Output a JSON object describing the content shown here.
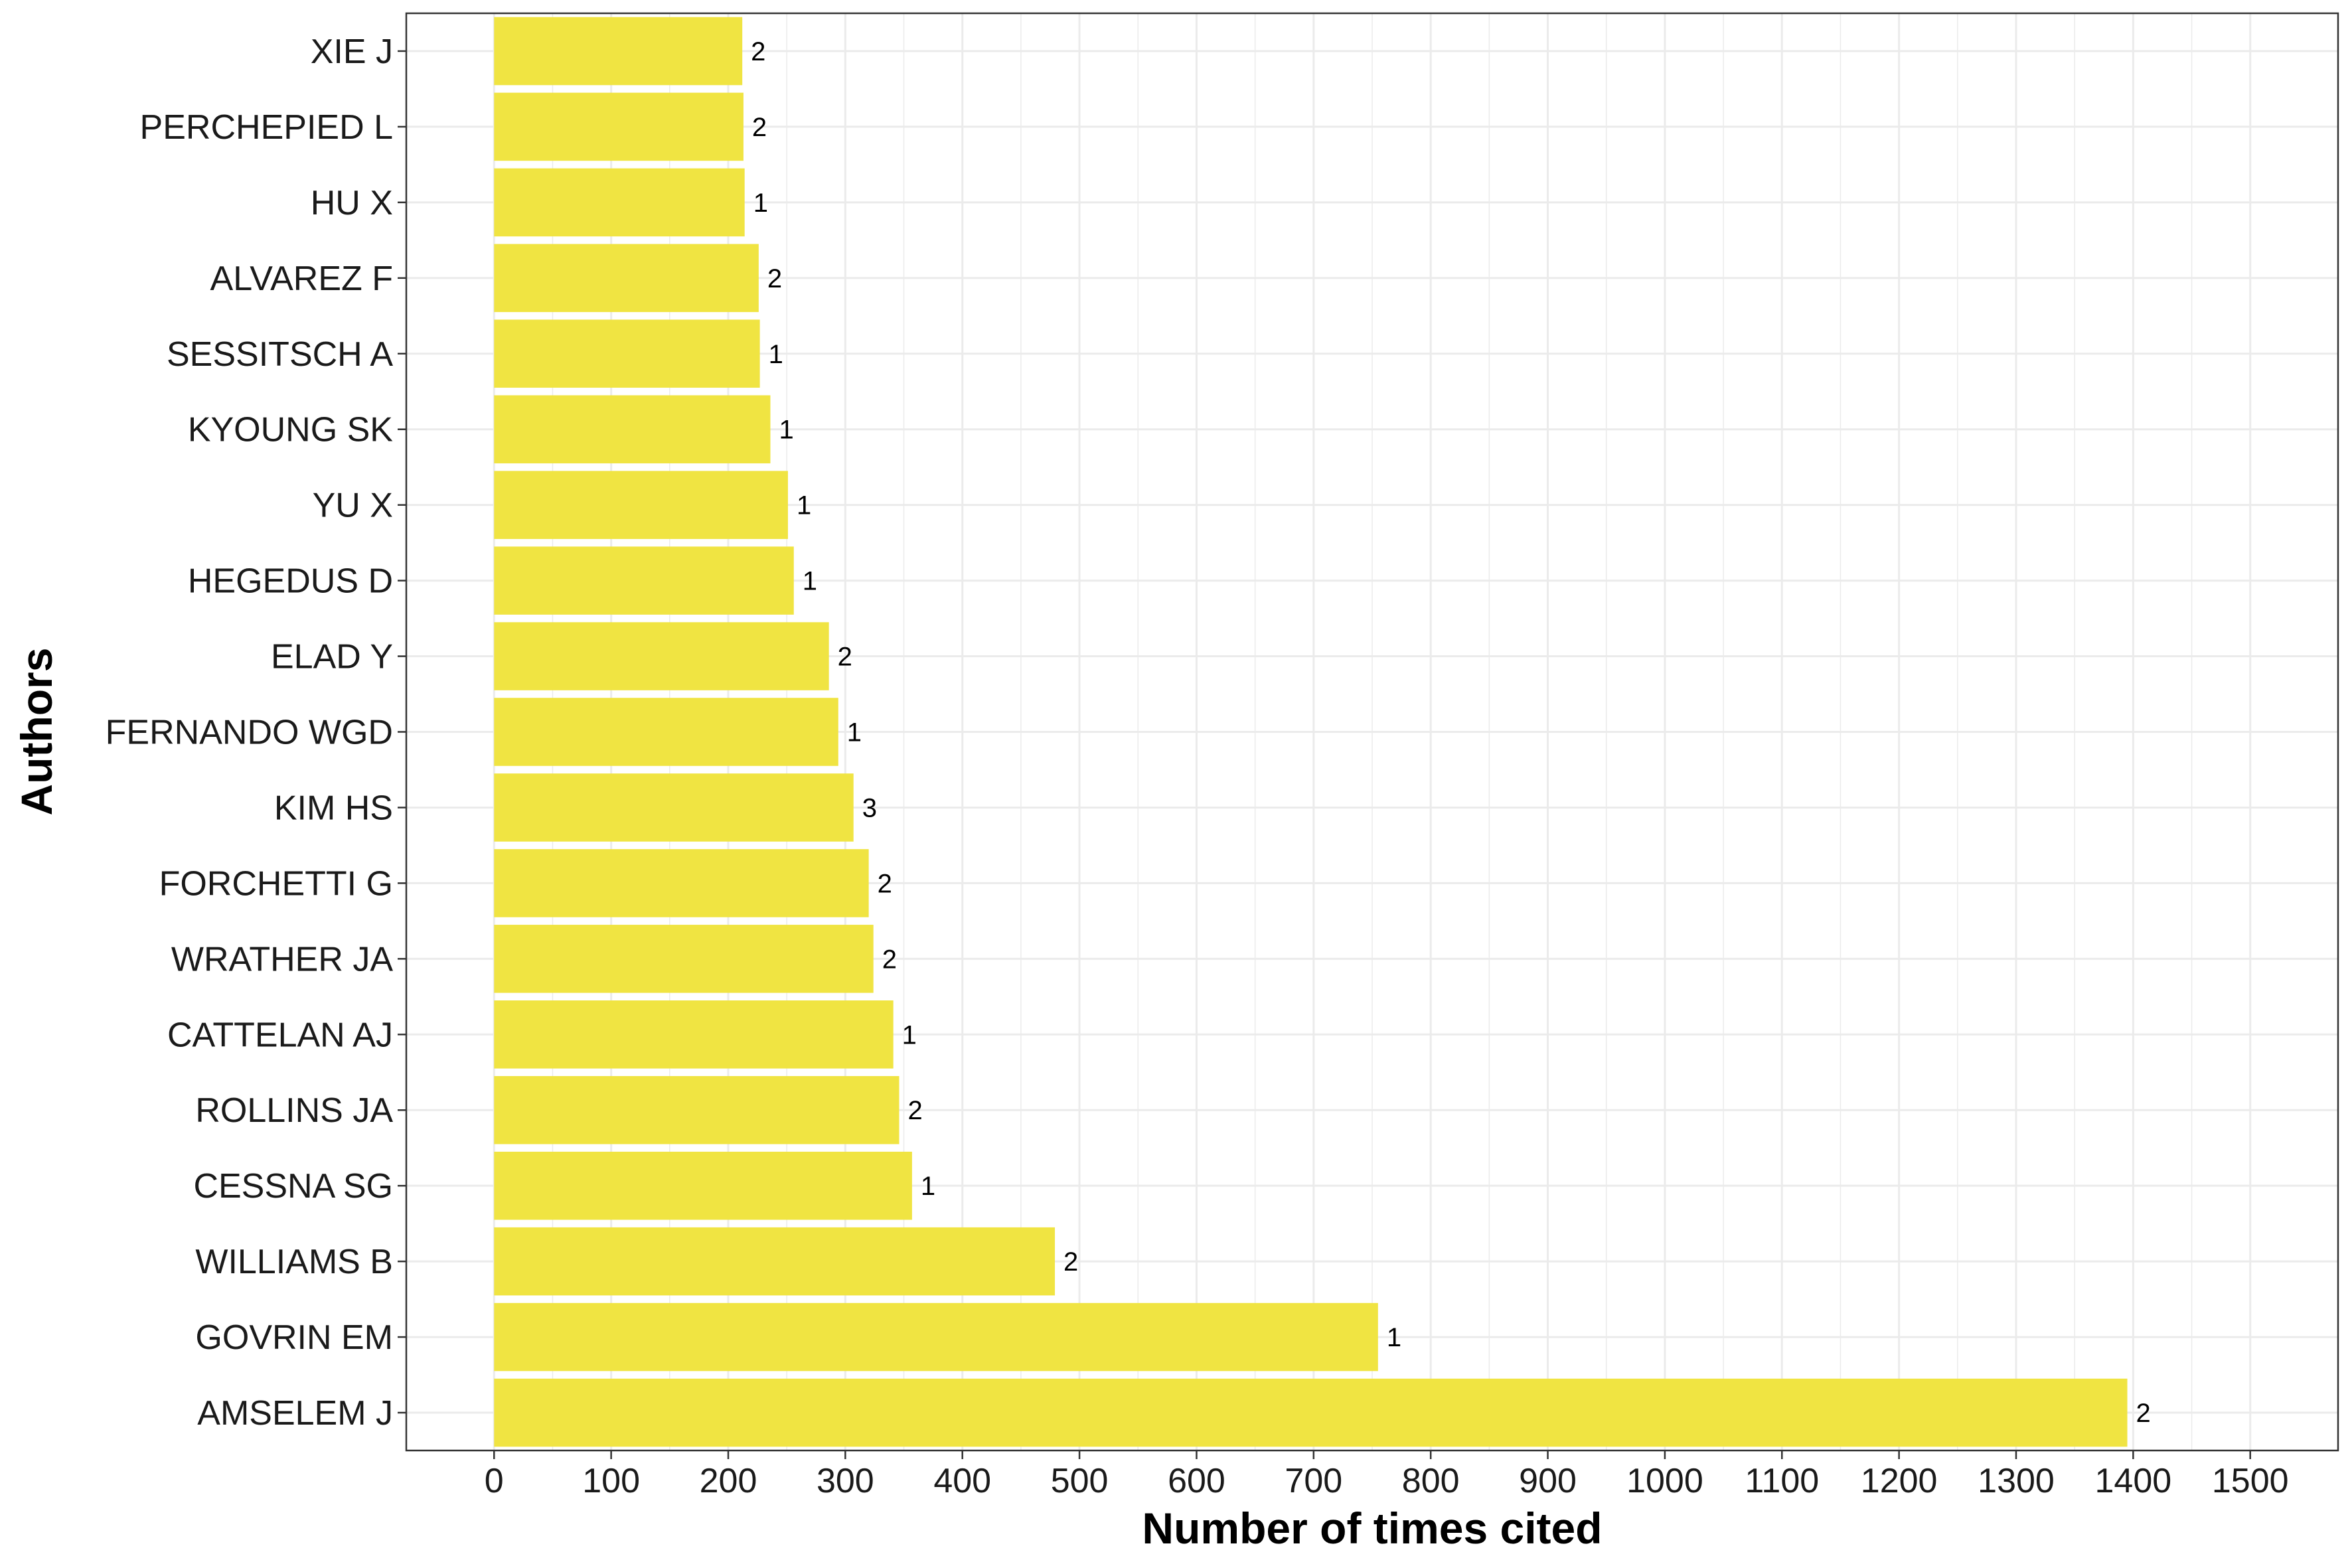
{
  "chart_data": {
    "type": "bar",
    "orientation": "horizontal",
    "xlabel": "Number of times cited",
    "ylabel": "Authors",
    "xlim": [
      -75,
      1575
    ],
    "xticks": [
      0,
      100,
      200,
      300,
      400,
      500,
      600,
      700,
      800,
      900,
      1000,
      1100,
      1200,
      1300,
      1400,
      1500
    ],
    "grid": true,
    "bar_color": "#F0E442",
    "grid_color": "#EBEBEB",
    "categories": [
      "XIE J",
      "PERCHEPIED L",
      "HU X",
      "ALVAREZ F",
      "SESSITSCH A",
      "KYOUNG SK",
      "YU X",
      "HEGEDUS D",
      "ELAD Y",
      "FERNANDO WGD",
      "KIM HS",
      "FORCHETTI G",
      "WRATHER JA",
      "CATTELAN AJ",
      "ROLLINS JA",
      "CESSNA SG",
      "WILLIAMS B",
      "GOVRIN EM",
      "AMSELEM J"
    ],
    "values": [
      212,
      213,
      214,
      226,
      227,
      236,
      251,
      256,
      286,
      294,
      307,
      320,
      324,
      341,
      346,
      357,
      479,
      755,
      1395
    ],
    "bar_labels": [
      "2",
      "2",
      "1",
      "2",
      "1",
      "1",
      "1",
      "1",
      "2",
      "1",
      "3",
      "2",
      "2",
      "1",
      "2",
      "1",
      "2",
      "1",
      "2"
    ]
  }
}
